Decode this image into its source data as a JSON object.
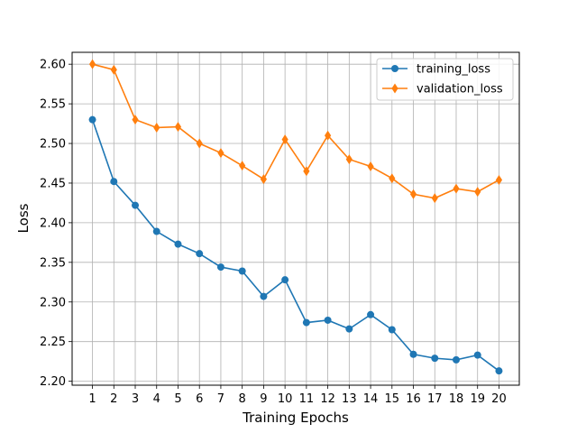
{
  "chart_data": {
    "type": "line",
    "title": "",
    "xlabel": "Training Epochs",
    "ylabel": "Loss",
    "x": [
      1,
      2,
      3,
      4,
      5,
      6,
      7,
      8,
      9,
      10,
      11,
      12,
      13,
      14,
      15,
      16,
      17,
      18,
      19,
      20
    ],
    "xticks": [
      "1",
      "2",
      "3",
      "4",
      "5",
      "6",
      "7",
      "8",
      "9",
      "10",
      "11",
      "12",
      "13",
      "14",
      "15",
      "16",
      "17",
      "18",
      "19",
      "20"
    ],
    "xlim": [
      0.05,
      20.95
    ],
    "ylim": [
      2.195,
      2.615
    ],
    "yticks": [
      "2.20",
      "2.25",
      "2.30",
      "2.35",
      "2.40",
      "2.45",
      "2.50",
      "2.55",
      "2.60"
    ],
    "grid": true,
    "legend": "top-right",
    "series": [
      {
        "name": "training_loss",
        "color": "#1f77b4",
        "marker": "circle",
        "values": [
          2.53,
          2.452,
          2.422,
          2.389,
          2.373,
          2.361,
          2.344,
          2.339,
          2.307,
          2.328,
          2.274,
          2.277,
          2.266,
          2.284,
          2.265,
          2.234,
          2.229,
          2.227,
          2.233,
          2.213
        ]
      },
      {
        "name": "validation_loss",
        "color": "#ff7f0e",
        "marker": "diamond",
        "values": [
          2.6,
          2.593,
          2.53,
          2.52,
          2.521,
          2.5,
          2.488,
          2.472,
          2.455,
          2.505,
          2.465,
          2.51,
          2.48,
          2.471,
          2.456,
          2.436,
          2.431,
          2.443,
          2.439,
          2.454
        ]
      }
    ]
  }
}
